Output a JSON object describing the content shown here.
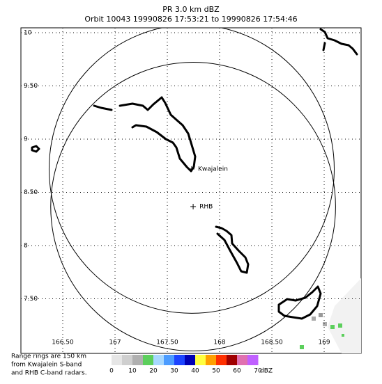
{
  "chart_data": {
    "type": "map",
    "title": "PR  3.0 km dBZ",
    "subtitle": "Orbit 10043 19990826 17:53:21 to 19990826 17:54:46",
    "xlim": [
      166.1,
      169.353
    ],
    "ylim": [
      6.987,
      10.046
    ],
    "xticks": [
      {
        "value": 166.5,
        "label": "166.50"
      },
      167,
      {
        "value": 167.5,
        "label": "167.50"
      },
      168,
      {
        "value": 168.5,
        "label": "168.50"
      },
      169
    ],
    "yticks": [
      10,
      {
        "value": 9.5,
        "label": "9.50"
      },
      9,
      {
        "value": 8.5,
        "label": "8.50"
      },
      8,
      {
        "value": 7.5,
        "label": "7.50"
      }
    ],
    "grid": true,
    "stations": [
      {
        "label": "Kwajalein",
        "lon": 167.733,
        "lat": 8.72
      },
      {
        "label": "RHB",
        "lon": 167.747,
        "lat": 8.366
      }
    ],
    "range_ring_km": 150,
    "note": [
      "Range rings are 150 km",
      "from Kwajalein S-band",
      "and RHB C-band radars."
    ],
    "colorbar": {
      "lim": [
        0,
        70
      ],
      "ticks": [
        0,
        10,
        20,
        30,
        40,
        50,
        60,
        70
      ],
      "unit": "dBZ",
      "colors": [
        "#e6e6e6",
        "#cfcfcf",
        "#b0b0b0",
        "#5ccf5c",
        "#a8d8ff",
        "#4c9cff",
        "#1c44ff",
        "#0000b4",
        "#ffff40",
        "#ffa000",
        "#ff3000",
        "#a00000",
        "#e070b0",
        "#c060ff"
      ]
    }
  }
}
